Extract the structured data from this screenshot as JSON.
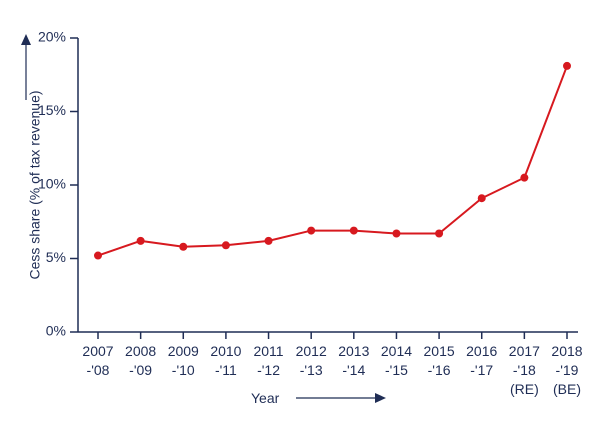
{
  "chart_data": {
    "type": "line",
    "title": "",
    "xlabel": "Year",
    "ylabel": "Cess share (% of tax revenue)",
    "ylim": [
      0,
      20
    ],
    "yticks": [
      "0%",
      "5%",
      "10%",
      "15%",
      "20%"
    ],
    "ytick_values": [
      0,
      5,
      10,
      15,
      20
    ],
    "categories": [
      {
        "line1": "2007",
        "line2": "-'08",
        "line3": ""
      },
      {
        "line1": "2008",
        "line2": "-'09",
        "line3": ""
      },
      {
        "line1": "2009",
        "line2": "-'10",
        "line3": ""
      },
      {
        "line1": "2010",
        "line2": "-'11",
        "line3": ""
      },
      {
        "line1": "2011",
        "line2": "-'12",
        "line3": ""
      },
      {
        "line1": "2012",
        "line2": "-'13",
        "line3": ""
      },
      {
        "line1": "2013",
        "line2": "-'14",
        "line3": ""
      },
      {
        "line1": "2014",
        "line2": "-'15",
        "line3": ""
      },
      {
        "line1": "2015",
        "line2": "-'16",
        "line3": ""
      },
      {
        "line1": "2016",
        "line2": "-'17",
        "line3": ""
      },
      {
        "line1": "2017",
        "line2": "-'18",
        "line3": "(RE)"
      },
      {
        "line1": "2018",
        "line2": "-'19",
        "line3": "(BE)"
      }
    ],
    "series": [
      {
        "name": "Cess share",
        "values": [
          5.2,
          6.2,
          5.8,
          5.9,
          6.2,
          6.9,
          6.9,
          6.7,
          6.7,
          9.1,
          10.5,
          18.1
        ],
        "color": "#d7191f"
      }
    ],
    "axis_color": "#1f2d55",
    "grid": false
  }
}
